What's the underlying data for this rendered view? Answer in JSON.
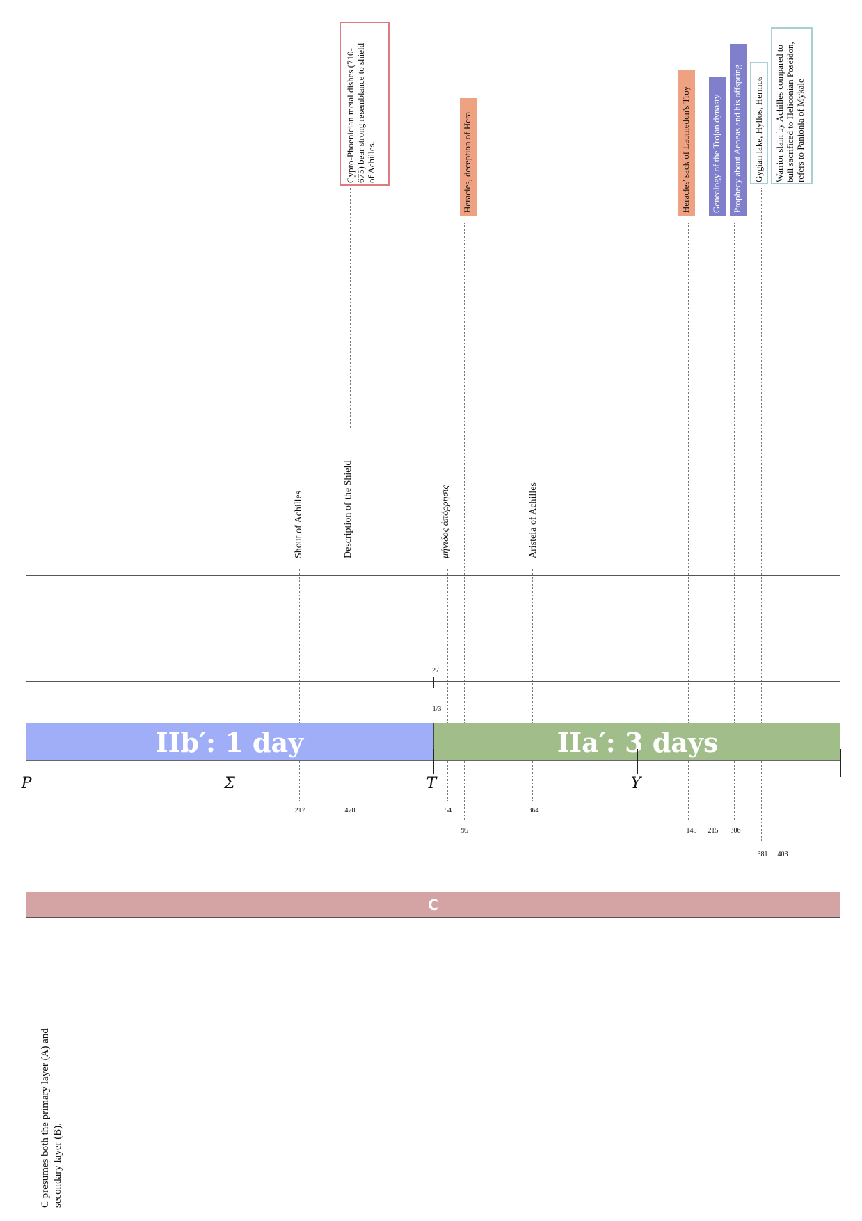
{
  "notes_boxes": [
    {
      "text": "Cypro-Phoenician metal dishes (710-\n675) bear strong resemblance to shield\nof Achilles.",
      "style": "outline",
      "color": "#e07a80"
    },
    {
      "text": "Heracles, deception of Hera",
      "style": "fill",
      "color": "#efa282"
    },
    {
      "text": "Heracles' sack of Laomedon's Troy",
      "style": "fill",
      "color": "#efa282"
    },
    {
      "text": "Genealogy of the Trojan dynasty",
      "style": "fill",
      "color": "#7f7fcc"
    },
    {
      "text": "Prophecy about Aeneas and his offspring",
      "style": "fill",
      "color": "#7f7fcc"
    },
    {
      "text": "Gygian lake, Hyllos, Hermos",
      "style": "outline",
      "color": "#a6cfd6"
    },
    {
      "text": "Warrior slain by Achilles compared to\nbull sacrificed to Heliconian Poseidon,\nrefers to Panionia of Mykale",
      "style": "outline",
      "color": "#a6cfd6"
    }
  ],
  "episodes": [
    {
      "text": "Shout of Achilles"
    },
    {
      "text": "Description of the Shield"
    },
    {
      "text": "μήνιδος ἀπόρρησις"
    },
    {
      "text": "Aristeia of Achilles"
    }
  ],
  "line_numbers": [
    "217",
    "478",
    "54",
    "95",
    "364",
    "145",
    "215",
    "306",
    "381",
    "403"
  ],
  "section_marks": [
    "27",
    "1/3"
  ],
  "bands": [
    {
      "label": "IIb′: 1 day",
      "color": "#a0aef7"
    },
    {
      "label": "IIa′: 3 days",
      "color": "#a0bd8a"
    }
  ],
  "books": [
    "P",
    "Σ",
    "T",
    "Υ"
  ],
  "layer_bar": {
    "label": "C",
    "color": "#d4a3a4"
  },
  "layer_note": "C presumes both the primary layer (A) and\nsecondary layer (B)."
}
